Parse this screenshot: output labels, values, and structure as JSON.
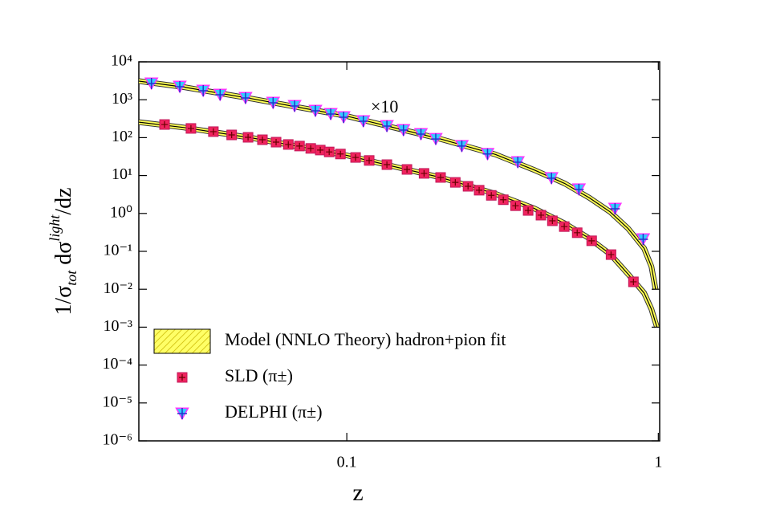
{
  "chart_data": {
    "type": "scatter",
    "x_label": "z",
    "y_label": [
      "1/σ",
      "tot",
      " dσ",
      "light",
      "/dz"
    ],
    "annotation": "×10",
    "xscale": "log",
    "yscale": "log",
    "xlim": [
      0.0215,
      1.01
    ],
    "ylim": [
      1e-06,
      10000
    ],
    "xticks": [
      0.1,
      1
    ],
    "yticks": [
      {
        "value": 1e-06,
        "label": "10⁻⁶"
      },
      {
        "value": 1e-05,
        "label": "10⁻⁵"
      },
      {
        "value": 0.0001,
        "label": "10⁻⁴"
      },
      {
        "value": 0.001,
        "label": "10⁻³"
      },
      {
        "value": 0.01,
        "label": "10⁻²"
      },
      {
        "value": 0.1,
        "label": "10⁻¹"
      },
      {
        "value": 1,
        "label": "10⁰"
      },
      {
        "value": 10,
        "label": "10¹"
      },
      {
        "value": 100,
        "label": "10²"
      },
      {
        "value": 1000,
        "label": "10³"
      },
      {
        "value": 10000,
        "label": "10⁴"
      }
    ],
    "legend": "lower left",
    "series": [
      {
        "name": "Model (NNLO Theory) hadron+pion fit",
        "style": "band",
        "color": "#ffff55",
        "x": [
          0.0215,
          0.03,
          0.05,
          0.1,
          0.2,
          0.3,
          0.4,
          0.5,
          0.6,
          0.7,
          0.8,
          0.9,
          0.95,
          0.99
        ],
        "values": [
          257,
          185,
          97,
          34,
          8.9,
          3.3,
          1.35,
          0.55,
          0.22,
          0.085,
          0.025,
          0.008,
          0.003,
          0.001
        ]
      },
      {
        "style": "band",
        "color": "#ffff55",
        "x": [
          0.0215,
          0.03,
          0.05,
          0.1,
          0.2,
          0.3,
          0.4,
          0.5,
          0.6,
          0.7,
          0.8,
          0.9,
          0.95,
          0.98
        ],
        "values": [
          3100,
          2150,
          1050,
          370,
          92,
          36,
          14,
          6.2,
          2.6,
          1.1,
          0.4,
          0.12,
          0.04,
          0.01
        ]
      },
      {
        "name": "SLD (π±)",
        "marker": "square",
        "color": "#f0245e",
        "x": [
          0.026,
          0.0316,
          0.0373,
          0.0427,
          0.0482,
          0.0536,
          0.0593,
          0.0649,
          0.0705,
          0.0766,
          0.0822,
          0.0878,
          0.0954,
          0.1067,
          0.118,
          0.1345,
          0.156,
          0.177,
          0.2,
          0.223,
          0.245,
          0.266,
          0.291,
          0.318,
          0.348,
          0.382,
          0.42,
          0.457,
          0.499,
          0.549,
          0.611,
          0.705,
          0.832
        ],
        "values": [
          222,
          175,
          144,
          118,
          102,
          88,
          76,
          66,
          60,
          52,
          47,
          42,
          37,
          30,
          25,
          19.4,
          14.5,
          11.4,
          8.9,
          6.6,
          5.2,
          4.1,
          3.0,
          2.3,
          1.6,
          1.2,
          0.9,
          0.64,
          0.45,
          0.31,
          0.19,
          0.082,
          0.0157
        ]
      },
      {
        "name": "DELPHI (π±)",
        "marker": "triangle-down",
        "color": "#33ccff",
        "x": [
          0.0236,
          0.0291,
          0.0346,
          0.0392,
          0.0473,
          0.058,
          0.068,
          0.0793,
          0.0888,
          0.0977,
          0.113,
          0.1345,
          0.152,
          0.173,
          0.193,
          0.234,
          0.283,
          0.354,
          0.454,
          0.556,
          0.726,
          0.894
        ],
        "values": [
          2680,
          2200,
          1730,
          1350,
          1110,
          830,
          684,
          510,
          420,
          345,
          271,
          202,
          158,
          124,
          92,
          60,
          37,
          22.5,
          8.5,
          4.3,
          1.33,
          0.208
        ]
      }
    ]
  }
}
